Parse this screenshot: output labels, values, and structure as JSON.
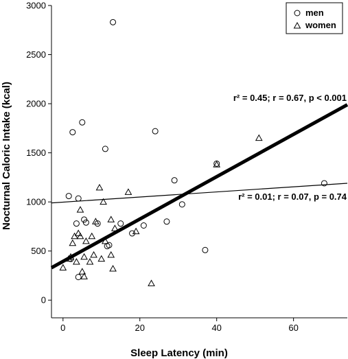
{
  "chart_data": {
    "type": "scatter",
    "title": "",
    "xlabel": "Sleep Latency (min)",
    "ylabel": "Nocturnal Caloric Intake (kcal)",
    "xlim": [
      -3,
      74
    ],
    "ylim": [
      -180,
      3000
    ],
    "xticks": [
      0,
      20,
      40,
      60
    ],
    "yticks": [
      0,
      500,
      1000,
      1500,
      2000,
      2500,
      3000
    ],
    "grid": false,
    "legend_position": "top-right",
    "series": [
      {
        "name": "men",
        "marker": "circle",
        "x": [
          13,
          5,
          2.5,
          24,
          11,
          4,
          1.5,
          6,
          3.5,
          5.5,
          9,
          15,
          21,
          18,
          11.5,
          12,
          4,
          2,
          29,
          31,
          27,
          40,
          37,
          68
        ],
        "y": [
          2830,
          1810,
          1710,
          1720,
          1540,
          1035,
          1060,
          790,
          780,
          820,
          780,
          780,
          760,
          680,
          550,
          560,
          235,
          420,
          1220,
          975,
          800,
          1390,
          510,
          1190
        ]
      },
      {
        "name": "women",
        "marker": "triangle",
        "x": [
          9.5,
          17,
          10.5,
          4.5,
          4,
          7.5,
          8.5,
          12.5,
          13.5,
          19,
          4.5,
          3,
          2.5,
          6,
          11,
          12.5,
          5.5,
          3.5,
          7,
          10,
          2,
          1.5,
          0,
          8,
          13,
          5,
          5.5,
          23,
          40,
          51
        ],
        "y": [
          1145,
          1100,
          1000,
          920,
          680,
          650,
          800,
          820,
          730,
          700,
          650,
          650,
          580,
          600,
          600,
          460,
          440,
          390,
          390,
          420,
          440,
          420,
          330,
          460,
          320,
          290,
          240,
          170,
          1380,
          1650
        ]
      }
    ],
    "fit_lines": [
      {
        "label": "all",
        "x": [
          -3,
          74
        ],
        "y": [
          330,
          1990
        ]
      },
      {
        "label": "women",
        "x": [
          -3,
          74
        ],
        "y": [
          990,
          1190
        ]
      }
    ],
    "annotations": [
      {
        "text": "r² = 0.45; r = 0.67, p < 0.001"
      },
      {
        "text": "r² = 0.01; r = 0.07, p = 0.74"
      }
    ]
  }
}
